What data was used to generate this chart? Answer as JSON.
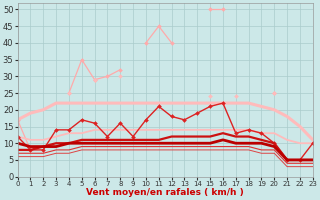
{
  "x": [
    0,
    1,
    2,
    3,
    4,
    5,
    6,
    7,
    8,
    9,
    10,
    11,
    12,
    13,
    14,
    15,
    16,
    17,
    18,
    19,
    20,
    21,
    22,
    23
  ],
  "series": [
    {
      "name": "light_peak_line",
      "color": "#ffaaaa",
      "lw": 0.9,
      "marker": "D",
      "markersize": 2.0,
      "values": [
        17,
        8,
        null,
        null,
        25,
        35,
        29,
        30,
        32,
        null,
        40,
        45,
        40,
        null,
        null,
        50,
        50,
        null,
        null,
        null,
        25,
        null,
        null,
        10
      ]
    },
    {
      "name": "light_secondary",
      "color": "#ffbbbb",
      "lw": 0.9,
      "marker": "D",
      "markersize": 2.0,
      "values": [
        null,
        null,
        null,
        null,
        25,
        null,
        29,
        null,
        30,
        null,
        null,
        null,
        null,
        null,
        null,
        24,
        null,
        24,
        null,
        null,
        25,
        null,
        null,
        null
      ]
    },
    {
      "name": "smooth_envelope",
      "color": "#ffbbbb",
      "lw": 2.2,
      "marker": null,
      "markersize": 0,
      "values": [
        17,
        19,
        20,
        22,
        22,
        22,
        22,
        22,
        22,
        22,
        22,
        22,
        22,
        22,
        22,
        22,
        22,
        22,
        22,
        21,
        20,
        18,
        15,
        11
      ]
    },
    {
      "name": "medium_envelope",
      "color": "#ffbbbb",
      "lw": 1.3,
      "marker": null,
      "markersize": 0,
      "values": [
        12,
        11,
        11,
        12,
        13,
        13,
        14,
        14,
        14,
        14,
        14,
        14,
        14,
        14,
        14,
        14,
        14,
        14,
        14,
        13,
        13,
        11,
        10,
        10
      ]
    },
    {
      "name": "red_marker_line",
      "color": "#dd2222",
      "lw": 1.0,
      "marker": "D",
      "markersize": 2.0,
      "values": [
        12,
        8,
        8,
        14,
        14,
        17,
        16,
        12,
        16,
        12,
        17,
        21,
        18,
        17,
        19,
        21,
        22,
        13,
        14,
        13,
        10,
        5,
        5,
        10
      ]
    },
    {
      "name": "red_smooth1",
      "color": "#cc1111",
      "lw": 1.6,
      "marker": null,
      "markersize": 0,
      "values": [
        8,
        8,
        9,
        10,
        10,
        11,
        11,
        11,
        11,
        11,
        11,
        11,
        12,
        12,
        12,
        12,
        13,
        12,
        12,
        11,
        10,
        5,
        5,
        5
      ]
    },
    {
      "name": "red_smooth2",
      "color": "#bb0000",
      "lw": 2.0,
      "marker": null,
      "markersize": 0,
      "values": [
        10,
        9,
        9,
        9,
        10,
        10,
        10,
        10,
        10,
        10,
        10,
        10,
        10,
        10,
        10,
        10,
        11,
        10,
        10,
        10,
        9,
        5,
        5,
        5
      ]
    },
    {
      "name": "red_thin1",
      "color": "#dd3333",
      "lw": 0.8,
      "marker": null,
      "markersize": 0,
      "values": [
        7,
        7,
        7,
        8,
        8,
        9,
        9,
        9,
        9,
        9,
        9,
        9,
        9,
        9,
        9,
        9,
        9,
        9,
        9,
        8,
        8,
        4,
        4,
        4
      ]
    },
    {
      "name": "red_thin2",
      "color": "#dd4444",
      "lw": 0.7,
      "marker": null,
      "markersize": 0,
      "values": [
        6,
        6,
        6,
        7,
        7,
        8,
        8,
        8,
        8,
        8,
        8,
        8,
        8,
        8,
        8,
        8,
        8,
        8,
        8,
        7,
        7,
        3,
        3,
        3
      ]
    }
  ],
  "xlim": [
    0,
    23
  ],
  "ylim": [
    0,
    52
  ],
  "yticks": [
    0,
    5,
    10,
    15,
    20,
    25,
    30,
    35,
    40,
    45,
    50
  ],
  "xticks": [
    0,
    1,
    2,
    3,
    4,
    5,
    6,
    7,
    8,
    9,
    10,
    11,
    12,
    13,
    14,
    15,
    16,
    17,
    18,
    19,
    20,
    21,
    22,
    23
  ],
  "xlabel": "Vent moyen/en rafales ( km/h )",
  "xlabel_color": "#cc0000",
  "xlabel_fontsize": 6.5,
  "background_color": "#cce8e8",
  "grid_color": "#aacccc",
  "xtick_labelsize": 5.0,
  "ytick_labelsize": 6.0
}
